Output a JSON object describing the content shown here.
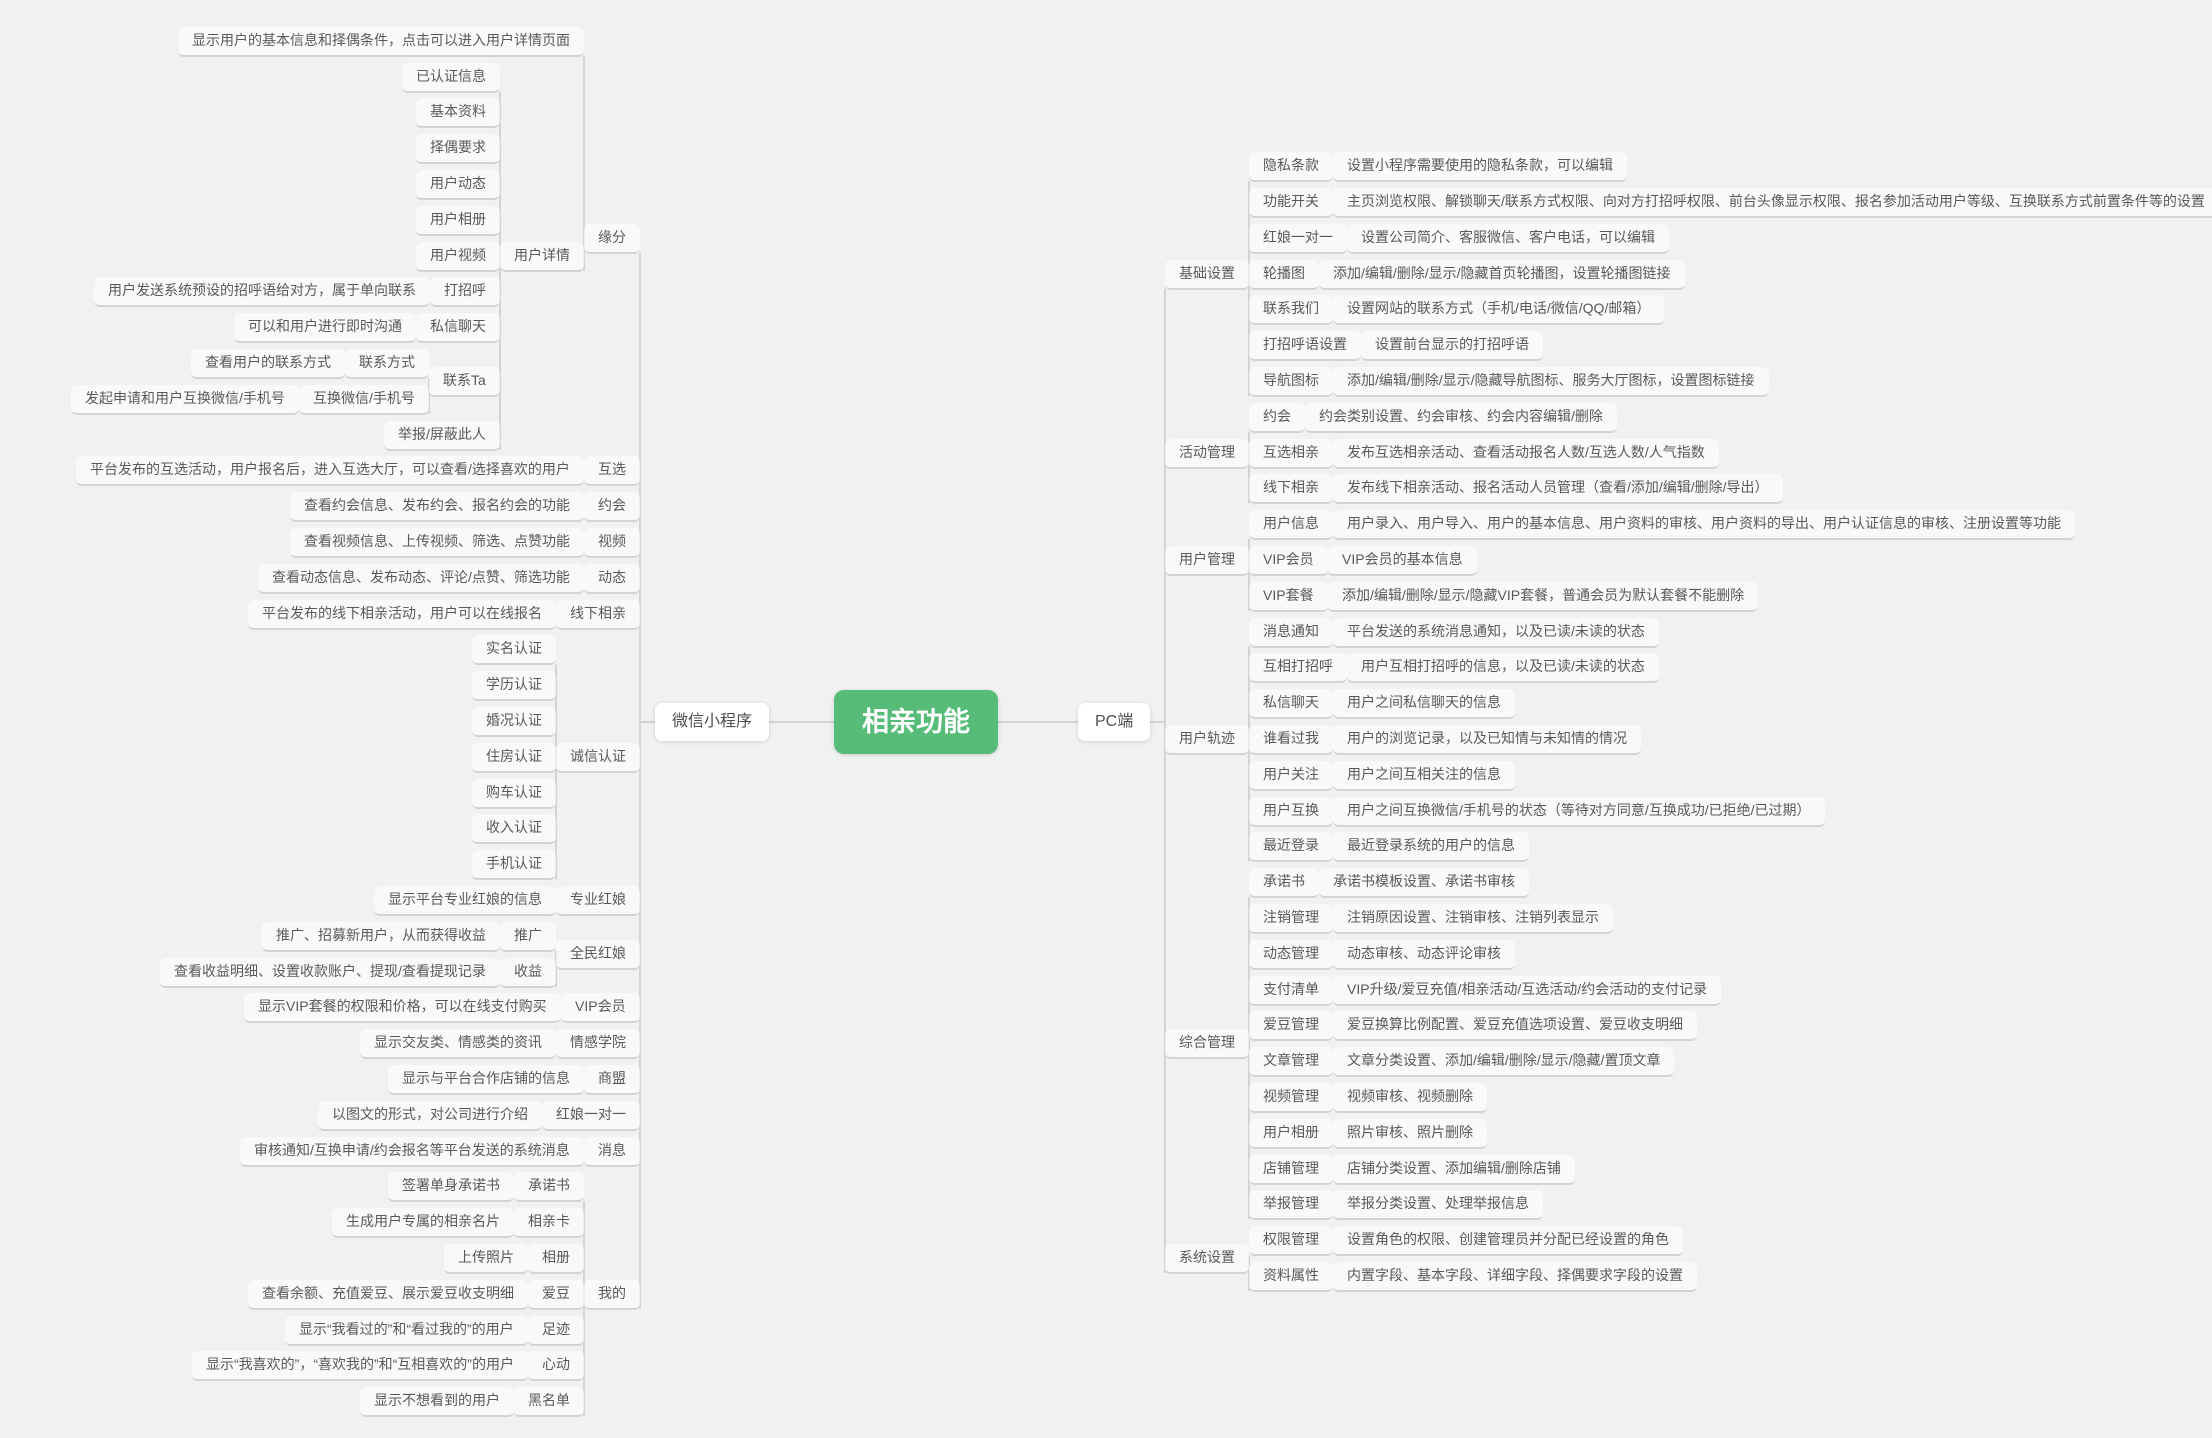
{
  "colors": {
    "canvas_bg": "#f0f1f1",
    "line": "#d2d4d4",
    "node_text": "#595959",
    "root_bg": "#57bc77",
    "root_text": "#ffffff",
    "card_bg": "#ffffff"
  },
  "root": {
    "label": "相亲功能"
  },
  "branches": [
    {
      "side": "left",
      "label": "微信小程序",
      "children": [
        {
          "label": "缘分",
          "note": "显示用户的基本信息和择偶条件，点击可以进入用户详情页面",
          "children": [
            {
              "label": "用户详情",
              "children": [
                {
                  "label": "已认证信息"
                },
                {
                  "label": "基本资料"
                },
                {
                  "label": "择偶要求"
                },
                {
                  "label": "用户动态"
                },
                {
                  "label": "用户相册"
                },
                {
                  "label": "用户视频"
                },
                {
                  "label": "打招呼",
                  "note": "用户发送系统预设的招呼语给对方，属于单向联系"
                },
                {
                  "label": "私信聊天",
                  "note": "可以和用户进行即时沟通"
                },
                {
                  "label": "联系Ta",
                  "children": [
                    {
                      "label": "联系方式",
                      "note": "查看用户的联系方式"
                    },
                    {
                      "label": "互换微信/手机号",
                      "note": "发起申请和用户互换微信/手机号"
                    }
                  ]
                },
                {
                  "label": "举报/屏蔽此人"
                }
              ]
            }
          ]
        },
        {
          "label": "互选",
          "note": "平台发布的互选活动，用户报名后，进入互选大厅，可以查看/选择喜欢的用户"
        },
        {
          "label": "约会",
          "note": "查看约会信息、发布约会、报名约会的功能"
        },
        {
          "label": "视频",
          "note": "查看视频信息、上传视频、筛选、点赞功能"
        },
        {
          "label": "动态",
          "note": "查看动态信息、发布动态、评论/点赞、筛选功能"
        },
        {
          "label": "线下相亲",
          "note": "平台发布的线下相亲活动，用户可以在线报名"
        },
        {
          "label": "诚信认证",
          "children": [
            {
              "label": "实名认证"
            },
            {
              "label": "学历认证"
            },
            {
              "label": "婚况认证"
            },
            {
              "label": "住房认证"
            },
            {
              "label": "购车认证"
            },
            {
              "label": "收入认证"
            },
            {
              "label": "手机认证"
            }
          ]
        },
        {
          "label": "专业红娘",
          "note": "显示平台专业红娘的信息"
        },
        {
          "label": "全民红娘",
          "children": [
            {
              "label": "推广",
              "note": "推广、招募新用户，从而获得收益"
            },
            {
              "label": "收益",
              "note": "查看收益明细、设置收款账户、提现/查看提现记录"
            }
          ]
        },
        {
          "label": "VIP会员",
          "note": "显示VIP套餐的权限和价格，可以在线支付购买"
        },
        {
          "label": "情感学院",
          "note": "显示交友类、情感类的资讯"
        },
        {
          "label": "商盟",
          "note": "显示与平台合作店铺的信息"
        },
        {
          "label": "红娘一对一",
          "note": "以图文的形式，对公司进行介绍"
        },
        {
          "label": "消息",
          "note": "审核通知/互换申请/约会报名等平台发送的系统消息"
        },
        {
          "label": "我的",
          "children": [
            {
              "label": "承诺书",
              "note": "签署单身承诺书"
            },
            {
              "label": "相亲卡",
              "note": "生成用户专属的相亲名片"
            },
            {
              "label": "相册",
              "note": "上传照片"
            },
            {
              "label": "爱豆",
              "note": "查看余额、充值爱豆、展示爱豆收支明细"
            },
            {
              "label": "足迹",
              "note": "显示“我看过的”和“看过我的”的用户"
            },
            {
              "label": "心动",
              "note": "显示“我喜欢的”，“喜欢我的”和“互相喜欢的”的用户"
            },
            {
              "label": "黑名单",
              "note": "显示不想看到的用户"
            }
          ]
        }
      ]
    },
    {
      "side": "right",
      "label": "PC端",
      "children": [
        {
          "label": "基础设置",
          "children": [
            {
              "label": "隐私条款",
              "note": "设置小程序需要使用的隐私条款，可以编辑"
            },
            {
              "label": "功能开关",
              "note": "主页浏览权限、解锁聊天/联系方式权限、向对方打招呼权限、前台头像显示权限、报名参加活动用户等级、互换联系方式前置条件等的设置"
            },
            {
              "label": "红娘一对一",
              "note": "设置公司简介、客服微信、客户电话，可以编辑"
            },
            {
              "label": "轮播图",
              "note": "添加/编辑/删除/显示/隐藏首页轮播图，设置轮播图链接"
            },
            {
              "label": "联系我们",
              "note": "设置网站的联系方式（手机/电话/微信/QQ/邮箱）"
            },
            {
              "label": "打招呼语设置",
              "note": "设置前台显示的打招呼语"
            },
            {
              "label": "导航图标",
              "note": "添加/编辑/删除/显示/隐藏导航图标、服务大厅图标，设置图标链接"
            }
          ]
        },
        {
          "label": "活动管理",
          "children": [
            {
              "label": "约会",
              "note": "约会类别设置、约会审核、约会内容编辑/删除"
            },
            {
              "label": "互选相亲",
              "note": "发布互选相亲活动、查看活动报名人数/互选人数/人气指数"
            },
            {
              "label": "线下相亲",
              "note": "发布线下相亲活动、报名活动人员管理（查看/添加/编辑/删除/导出）"
            }
          ]
        },
        {
          "label": "用户管理",
          "children": [
            {
              "label": "用户信息",
              "note": "用户录入、用户导入、用户的基本信息、用户资料的审核、用户资料的导出、用户认证信息的审核、注册设置等功能"
            },
            {
              "label": "VIP会员",
              "note": "VIP会员的基本信息"
            },
            {
              "label": "VIP套餐",
              "note": "添加/编辑/删除/显示/隐藏VIP套餐，普通会员为默认套餐不能删除"
            }
          ]
        },
        {
          "label": "用户轨迹",
          "children": [
            {
              "label": "消息通知",
              "note": "平台发送的系统消息通知，以及已读/未读的状态"
            },
            {
              "label": "互相打招呼",
              "note": "用户互相打招呼的信息，以及已读/未读的状态"
            },
            {
              "label": "私信聊天",
              "note": "用户之间私信聊天的信息"
            },
            {
              "label": "谁看过我",
              "note": "用户的浏览记录，以及已知情与未知情的情况"
            },
            {
              "label": "用户关注",
              "note": "用户之间互相关注的信息"
            },
            {
              "label": "用户互换",
              "note": "用户之间互换微信/手机号的状态（等待对方同意/互换成功/已拒绝/已过期）"
            },
            {
              "label": "最近登录",
              "note": "最近登录系统的用户的信息"
            }
          ]
        },
        {
          "label": "综合管理",
          "children": [
            {
              "label": "承诺书",
              "note": "承诺书模板设置、承诺书审核"
            },
            {
              "label": "注销管理",
              "note": "注销原因设置、注销审核、注销列表显示"
            },
            {
              "label": "动态管理",
              "note": "动态审核、动态评论审核"
            },
            {
              "label": "支付清单",
              "note": "VIP升级/爱豆充值/相亲活动/互选活动/约会活动的支付记录"
            },
            {
              "label": "爱豆管理",
              "note": "爱豆换算比例配置、爱豆充值选项设置、爱豆收支明细"
            },
            {
              "label": "文章管理",
              "note": "文章分类设置、添加/编辑/删除/显示/隐藏/置顶文章"
            },
            {
              "label": "视频管理",
              "note": "视频审核、视频删除"
            },
            {
              "label": "用户相册",
              "note": "照片审核、照片删除"
            },
            {
              "label": "店铺管理",
              "note": "店铺分类设置、添加编辑/删除店铺"
            },
            {
              "label": "举报管理",
              "note": "举报分类设置、处理举报信息"
            }
          ]
        },
        {
          "label": "系统设置",
          "children": [
            {
              "label": "权限管理",
              "note": "设置角色的权限、创建管理员并分配已经设置的角色"
            },
            {
              "label": "资料属性",
              "note": "内置字段、基本字段、详细字段、择偶要求字段的设置"
            }
          ]
        }
      ]
    }
  ]
}
